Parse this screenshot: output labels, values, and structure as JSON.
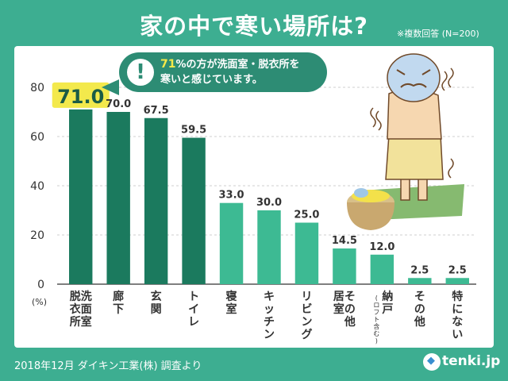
{
  "title": "家の中で寒い場所は?",
  "note": "※複数回答 (N=200)",
  "footer": "2018年12月  ダイキン工業(株) 調査より",
  "logo": {
    "text": "tenki.jp",
    "icon": "cloud-icon"
  },
  "callout": {
    "icon": "exclamation-icon",
    "highlight": "71",
    "line1_suffix": "%の方が洗面室・脱衣所を",
    "line2": "寒いと感じています。"
  },
  "illustration": {
    "icon": "shivering-person-bath-icon"
  },
  "colors": {
    "background": "#3dae91",
    "bar_main": "#1b7a5e",
    "bar_rest": "#3dba93",
    "highlight_value": "#f3e94c"
  },
  "chart_data": {
    "type": "bar",
    "title": "家の中で寒い場所は?",
    "unit_label": "(%)",
    "categories": [
      "脱洗\n衣面\n所室",
      "廊下",
      "玄関",
      "トイレ",
      "寝室",
      "キッチン",
      "リビング",
      "居室\nその他",
      "納戸\n(ロフト含む)",
      "その他",
      "特にない"
    ],
    "category_columns": [
      [
        "洗面室",
        "脱衣所"
      ],
      [
        "廊下"
      ],
      [
        "玄関"
      ],
      [
        "トイレ"
      ],
      [
        "寝室"
      ],
      [
        "キッチン"
      ],
      [
        "リビング"
      ],
      [
        "その他",
        "居室"
      ],
      [
        "納戸",
        "(ロフト含む)"
      ],
      [
        "その他"
      ],
      [
        "特にない"
      ]
    ],
    "values": [
      71.0,
      70.0,
      67.5,
      59.5,
      33.0,
      30.0,
      25.0,
      14.5,
      12.0,
      2.5,
      2.5
    ],
    "value_labels": [
      "71.0",
      "70.0",
      "67.5",
      "59.5",
      "33.0",
      "30.0",
      "25.0",
      "14.5",
      "12.0",
      "2.5",
      "2.5"
    ],
    "ylim": [
      0,
      80
    ],
    "yticks": [
      "0",
      "20",
      "40",
      "60",
      "80"
    ],
    "grid": true
  }
}
